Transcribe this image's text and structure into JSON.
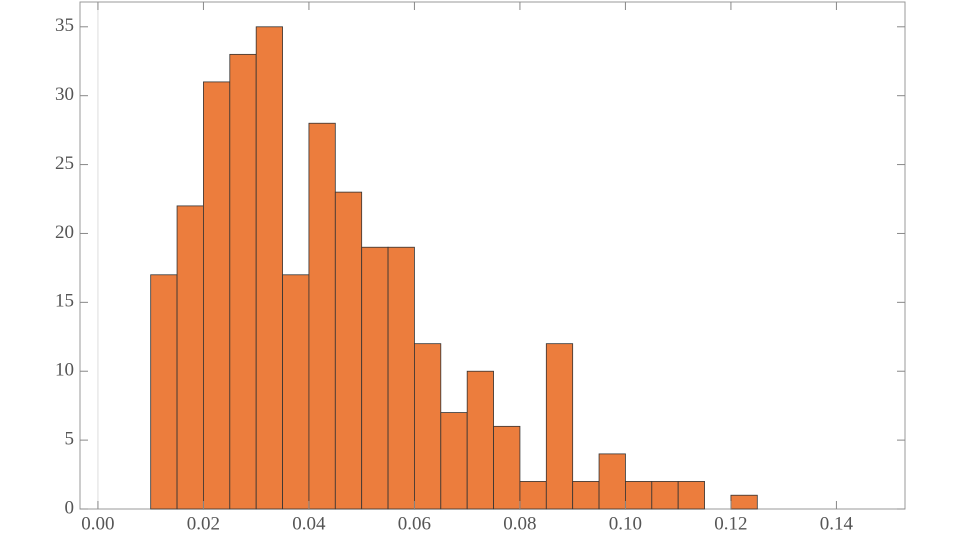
{
  "chart_data": {
    "type": "histogram",
    "bins": [
      0.01,
      0.015,
      0.02,
      0.025,
      0.03,
      0.035,
      0.04,
      0.045,
      0.05,
      0.055,
      0.06,
      0.065,
      0.07,
      0.075,
      0.08,
      0.085,
      0.09,
      0.095,
      0.1,
      0.105,
      0.11,
      0.115,
      0.12,
      0.125
    ],
    "counts": [
      17,
      22,
      31,
      33,
      35,
      17,
      28,
      23,
      19,
      19,
      12,
      7,
      10,
      6,
      2,
      12,
      2,
      4,
      2,
      2,
      2,
      0,
      1
    ],
    "color": "#ec7d3d",
    "xlim": [
      -0.0034,
      0.153
    ],
    "xticks": [
      {
        "value": 0,
        "label": "0.00"
      },
      {
        "value": 0.02,
        "label": "0.02"
      },
      {
        "value": 0.04,
        "label": "0.04"
      },
      {
        "value": 0.06,
        "label": "0.06"
      },
      {
        "value": 0.08,
        "label": "0.08"
      },
      {
        "value": 0.1,
        "label": "0.10"
      },
      {
        "value": 0.12,
        "label": "0.12"
      },
      {
        "value": 0.14,
        "label": "0.14"
      }
    ],
    "ylim": [
      0,
      36.8
    ],
    "yticks": [
      0,
      5,
      10,
      15,
      20,
      25,
      30,
      35
    ]
  }
}
